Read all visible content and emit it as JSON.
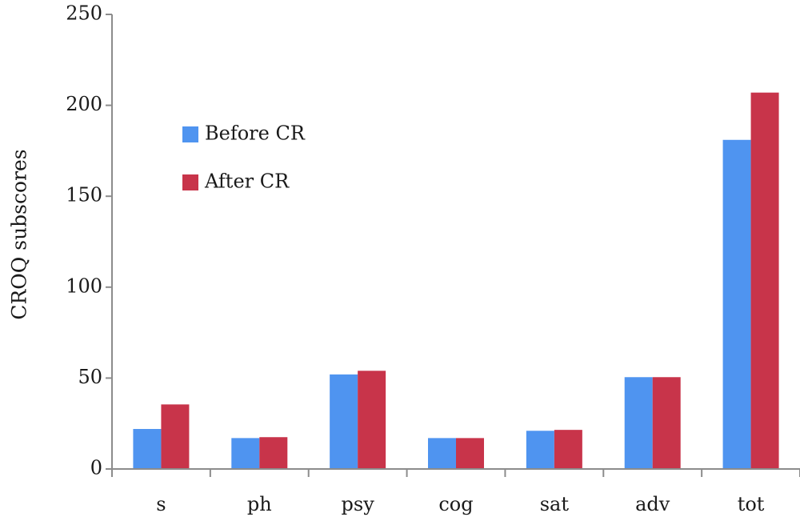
{
  "chart_data": {
    "type": "bar",
    "title": "",
    "xlabel": "",
    "ylabel": "CROQ subscores",
    "ylim": [
      0,
      250
    ],
    "yticks": [
      0,
      50,
      100,
      150,
      200,
      250
    ],
    "grid": false,
    "legend_position": "top-left",
    "categories": [
      "s",
      "ph",
      "psy",
      "cog",
      "sat",
      "adv",
      "tot"
    ],
    "series": [
      {
        "name": "Before CR",
        "color": "#4f94f0",
        "values": [
          22,
          17,
          52,
          17,
          21,
          50.5,
          181
        ]
      },
      {
        "name": "After CR",
        "color": "#c8344a",
        "values": [
          35.5,
          17.5,
          54,
          17,
          21.5,
          50.5,
          207
        ]
      }
    ]
  }
}
